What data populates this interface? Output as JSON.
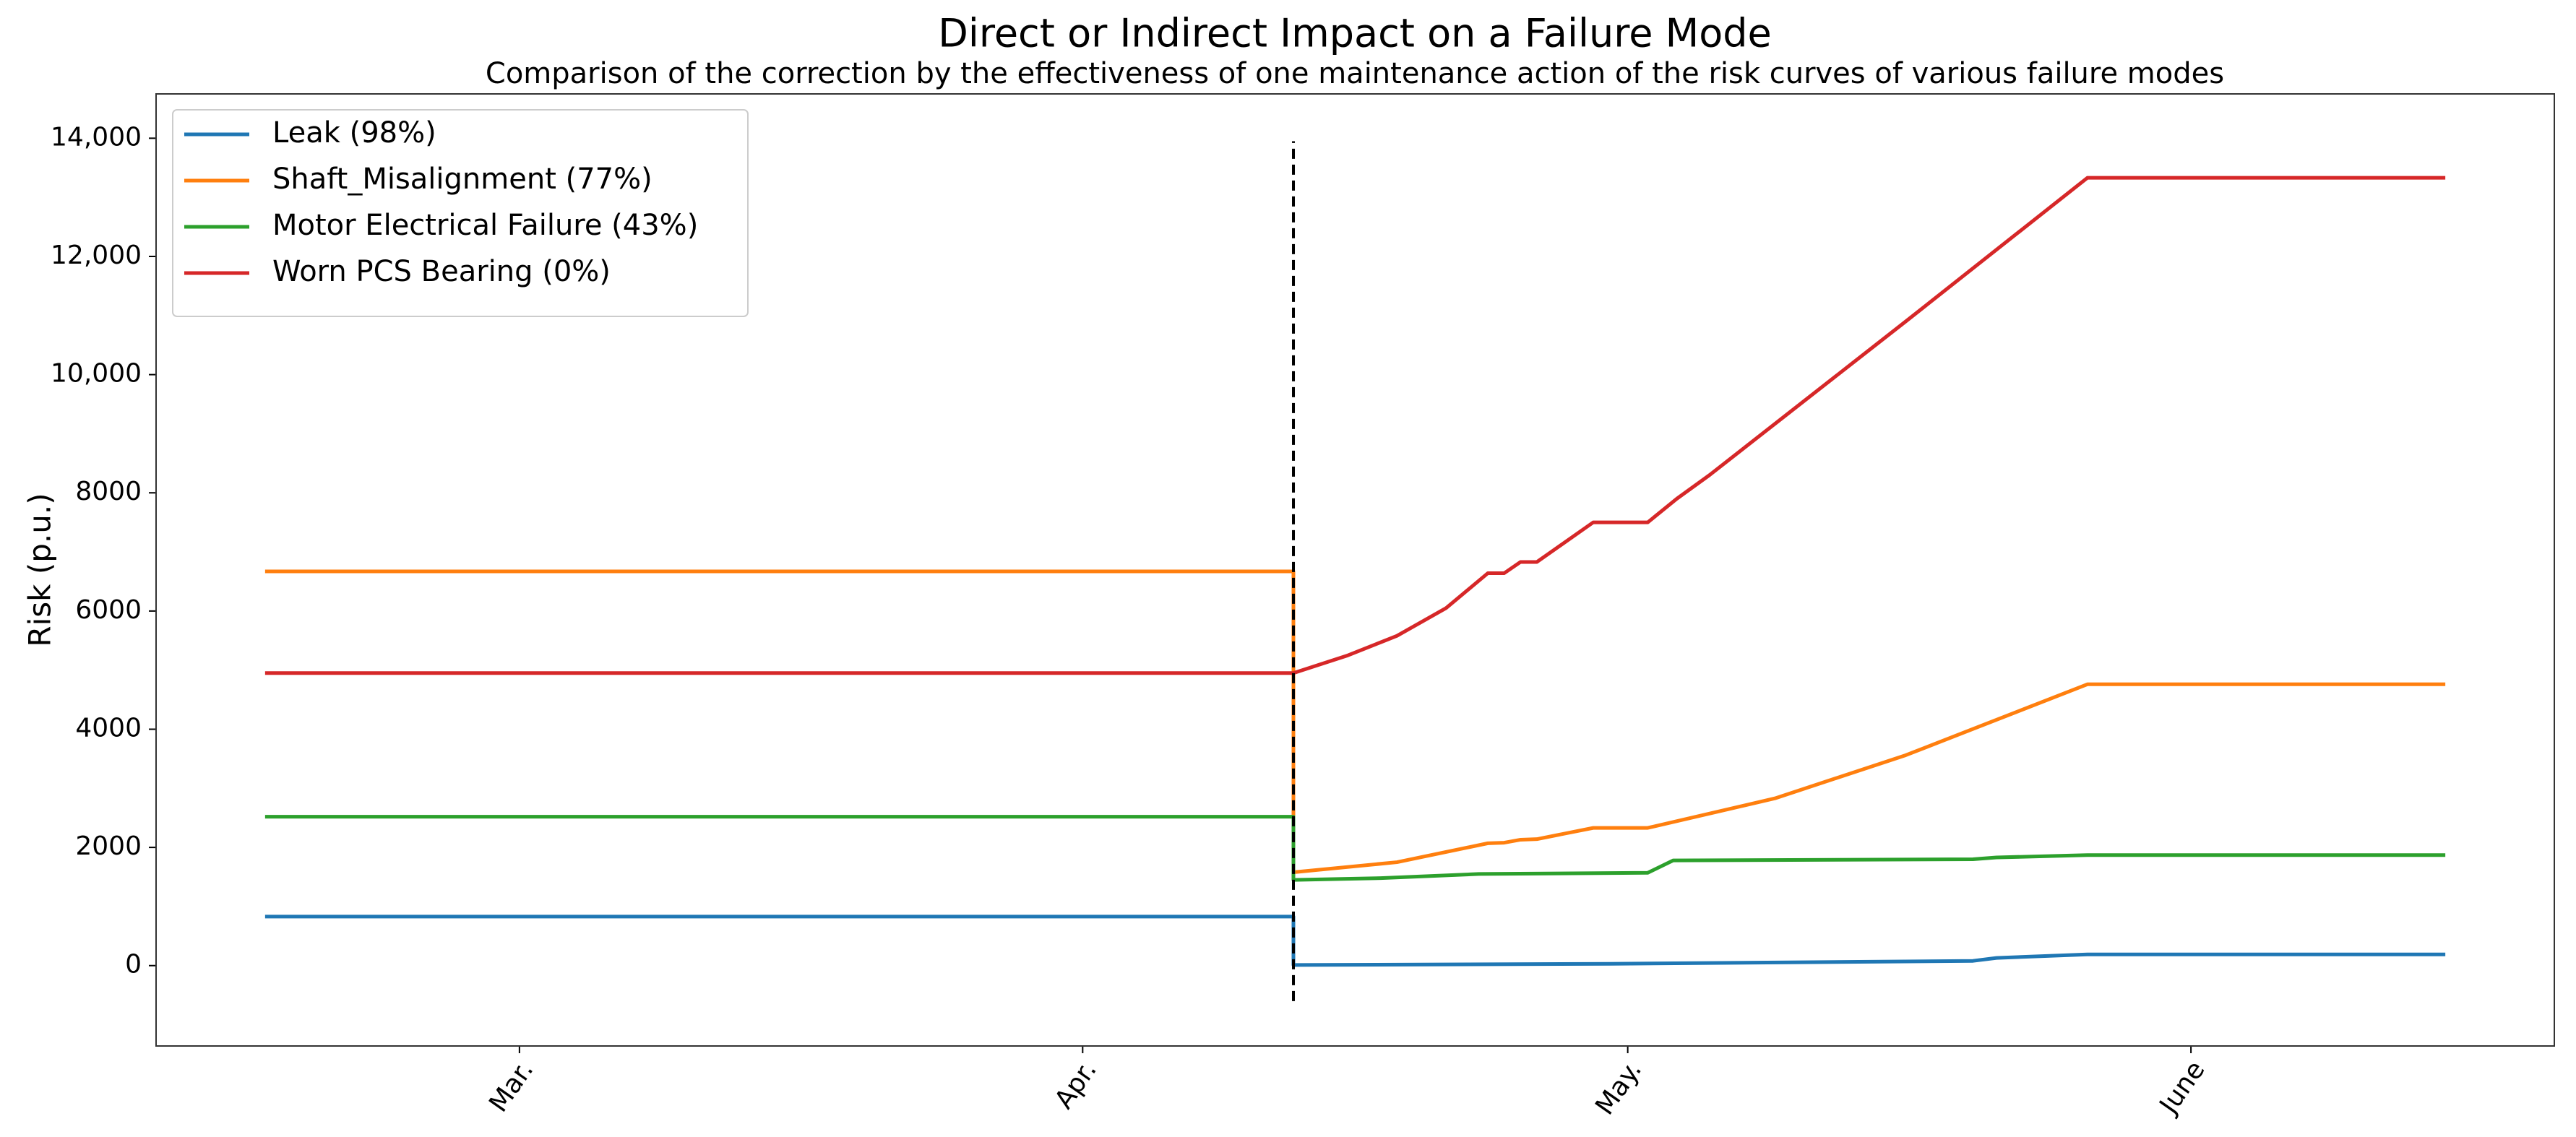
{
  "chart_data": {
    "type": "line",
    "title": "Direct or Indirect Impact on a Failure Mode",
    "subtitle": "Comparison of the correction by the effectiveness of one maintenance action of the risk curves of various failure modes",
    "y_label": "Risk (p.u.)",
    "xlim": [
      40,
      172
    ],
    "xticks": [
      {
        "value": 60,
        "label": "Mar."
      },
      {
        "value": 91,
        "label": "Apr."
      },
      {
        "value": 121,
        "label": "May."
      },
      {
        "value": 152,
        "label": "June"
      }
    ],
    "ylim": [
      -1360,
      14750
    ],
    "yticks": [
      0,
      2000,
      4000,
      6000,
      8000,
      {
        "value": 10000,
        "label": "10,000"
      },
      {
        "value": 12000,
        "label": "12,000"
      },
      {
        "value": 14000,
        "label": "14,000"
      }
    ],
    "legend": "upper left",
    "grid": false,
    "vline": {
      "x": 102.6,
      "ymin": -600,
      "ymax": 13950,
      "color": "#000000"
    },
    "series": [
      {
        "name": "Leak (98%)",
        "color": "#1f77b4",
        "x": [
          46,
          102.6,
          102.6,
          120,
          140,
          141.3,
          146.3,
          166
        ],
        "values": [
          830,
          830,
          10,
          30,
          80,
          130,
          190,
          190
        ]
      },
      {
        "name": "Shaft_Misalignment (77%)",
        "color": "#ff7f0e",
        "x": [
          46,
          102.6,
          102.6,
          108.3,
          113.3,
          114.2,
          115.1,
          116,
          119.1,
          122.1,
          129.1,
          136.3,
          146.3,
          166
        ],
        "values": [
          6670,
          6670,
          1580,
          1750,
          2070,
          2080,
          2130,
          2140,
          2330,
          2330,
          2830,
          3560,
          4760,
          4760
        ]
      },
      {
        "name": "Motor Electrical Failure (43%)",
        "color": "#2ca02c",
        "x": [
          46,
          102.6,
          102.6,
          107.4,
          112.8,
          122.1,
          123.5,
          140,
          141.3,
          146.3,
          166
        ],
        "values": [
          2520,
          2520,
          1450,
          1480,
          1550,
          1570,
          1780,
          1800,
          1830,
          1870,
          1870
        ]
      },
      {
        "name": "Worn PCS Bearing (0%)",
        "color": "#d62728",
        "x": [
          46,
          102.6,
          105.6,
          108.3,
          111,
          113.3,
          114.2,
          115.1,
          116,
          119.1,
          122.1,
          123.7,
          125.5,
          136.3,
          146.3,
          166
        ],
        "values": [
          4950,
          4950,
          5250,
          5580,
          6050,
          6640,
          6640,
          6830,
          6830,
          7500,
          7500,
          7900,
          8300,
          10900,
          13330,
          13330
        ]
      }
    ]
  }
}
